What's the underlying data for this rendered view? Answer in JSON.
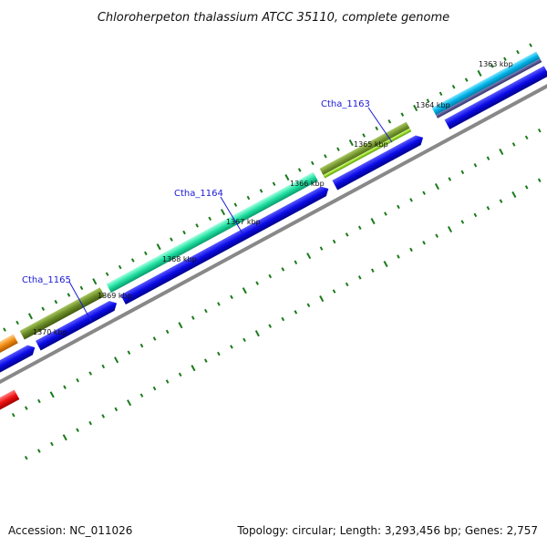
{
  "title": "Chloroherpeton thalassium ATCC 35110, complete genome",
  "footer": {
    "accession": "Accession: NC_011026",
    "summary": "Topology: circular; Length: 3,293,456 bp; Genes: 2,757"
  },
  "scale_labels": [
    "1363 kbp",
    "1364 kbp",
    "1365 kbp",
    "1366 kbp",
    "1367 kbp",
    "1368 kbp",
    "1369 kbp",
    "1370 kbp"
  ],
  "gene_labels": [
    "Ctha_1163",
    "Ctha_1164",
    "Ctha_1165"
  ],
  "colors": {
    "cds_track": "#0a0ae6",
    "backbone": "#888888",
    "ticks": "#1a7a1a",
    "gene_label": "#1a1ad6",
    "features": [
      "#00b4e8",
      "#8fd820",
      "#6a8a26",
      "#20e0a0",
      "#6a8a26",
      "#f08a10",
      "#ee1111"
    ]
  }
}
